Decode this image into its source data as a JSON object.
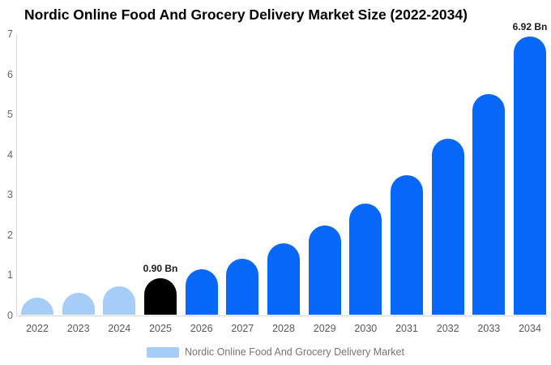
{
  "title": "Nordic Online Food And Grocery Delivery Market Size (2022-2034)",
  "legend": {
    "label": "Nordic Online Food And Grocery Delivery Market",
    "swatch_color": "#a6cdf7"
  },
  "colors": {
    "historical_bar": "#a6cdf7",
    "base_year_bar": "#000000",
    "forecast_bar": "#0568fb",
    "axis_line": "#d9d9d9",
    "y_axis_label": "#666666",
    "x_axis_label": "#595959",
    "value_label": "#1a1a1a",
    "legend_text": "#757575",
    "title_text": "#000000",
    "background": "#ffffff"
  },
  "chart_data": {
    "type": "bar",
    "title": "Nordic Online Food And Grocery Delivery Market Size (2022-2034)",
    "value_unit": "Bn",
    "categories": [
      "2022",
      "2023",
      "2024",
      "2025",
      "2026",
      "2027",
      "2028",
      "2029",
      "2030",
      "2031",
      "2032",
      "2033",
      "2034"
    ],
    "values": [
      0.42,
      0.55,
      0.7,
      0.9,
      1.12,
      1.4,
      1.77,
      2.21,
      2.77,
      3.47,
      4.37,
      5.49,
      6.92
    ],
    "point_colors": [
      "#a6cdf7",
      "#a6cdf7",
      "#a6cdf7",
      "#000000",
      "#0568fb",
      "#0568fb",
      "#0568fb",
      "#0568fb",
      "#0568fb",
      "#0568fb",
      "#0568fb",
      "#0568fb",
      "#0568fb"
    ],
    "point_labels": [
      {
        "category": "2025",
        "text": "0.90 Bn"
      },
      {
        "category": "2034",
        "text": "6.92 Bn"
      }
    ],
    "xlabel": "",
    "ylabel": "",
    "ylim": [
      0,
      7
    ],
    "yticks": [
      0,
      1,
      2,
      3,
      4,
      5,
      6,
      7
    ],
    "grid": false,
    "legend_position": "bottom",
    "legend_entries": [
      "Nordic Online Food And Grocery Delivery Market"
    ]
  }
}
